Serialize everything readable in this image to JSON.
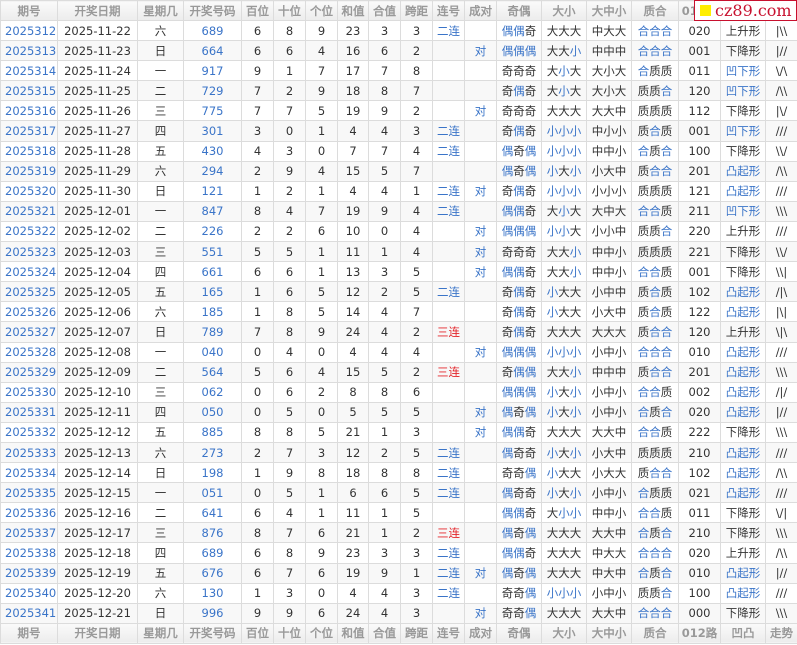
{
  "columns": [
    "期号",
    "开奖日期",
    "星期几",
    "开奖号码",
    "百位",
    "十位",
    "个位",
    "和值",
    "合值",
    "跨距",
    "连号",
    "成对",
    "奇偶",
    "大小",
    "大中小",
    "质合",
    "012路",
    "凹凸",
    "走势"
  ],
  "watermark": "cz89.com",
  "colors": {
    "blue": "#3a74c8",
    "red": "#e3262b"
  },
  "rows": [
    [
      "2025312",
      "2025-11-22",
      "六",
      "689",
      "6",
      "8",
      "9",
      "23",
      "3",
      "3",
      "二连",
      "",
      "偶偶奇",
      "大大大",
      "中大大",
      "合合合",
      "020",
      "上升形",
      "|\\\\"
    ],
    [
      "2025313",
      "2025-11-23",
      "日",
      "664",
      "6",
      "6",
      "4",
      "16",
      "6",
      "2",
      "",
      "对",
      "偶偶偶",
      "大大小",
      "中中中",
      "合合合",
      "001",
      "下降形",
      "|//"
    ],
    [
      "2025314",
      "2025-11-24",
      "一",
      "917",
      "9",
      "1",
      "7",
      "17",
      "7",
      "8",
      "",
      "",
      "奇奇奇",
      "大小大",
      "大小大",
      "合质质",
      "011",
      "凹下形",
      "\\/\\"
    ],
    [
      "2025315",
      "2025-11-25",
      "二",
      "729",
      "7",
      "2",
      "9",
      "18",
      "8",
      "7",
      "",
      "",
      "奇偶奇",
      "大小大",
      "大小大",
      "质质合",
      "120",
      "凹下形",
      "/\\\\"
    ],
    [
      "2025316",
      "2025-11-26",
      "三",
      "775",
      "7",
      "7",
      "5",
      "19",
      "9",
      "2",
      "",
      "对",
      "奇奇奇",
      "大大大",
      "大大中",
      "质质质",
      "112",
      "下降形",
      "|\\/"
    ],
    [
      "2025317",
      "2025-11-27",
      "四",
      "301",
      "3",
      "0",
      "1",
      "4",
      "4",
      "3",
      "二连",
      "",
      "奇偶奇",
      "小小小",
      "中小小",
      "质合质",
      "001",
      "凹下形",
      "///"
    ],
    [
      "2025318",
      "2025-11-28",
      "五",
      "430",
      "4",
      "3",
      "0",
      "7",
      "7",
      "4",
      "二连",
      "",
      "偶奇偶",
      "小小小",
      "中中小",
      "合质合",
      "100",
      "下降形",
      "\\\\/"
    ],
    [
      "2025319",
      "2025-11-29",
      "六",
      "294",
      "2",
      "9",
      "4",
      "15",
      "5",
      "7",
      "",
      "",
      "偶奇偶",
      "小大小",
      "小大中",
      "质合合",
      "201",
      "凸起形",
      "/\\\\"
    ],
    [
      "2025320",
      "2025-11-30",
      "日",
      "121",
      "1",
      "2",
      "1",
      "4",
      "4",
      "1",
      "二连",
      "对",
      "奇偶奇",
      "小小小",
      "小小小",
      "质质质",
      "121",
      "凸起形",
      "///"
    ],
    [
      "2025321",
      "2025-12-01",
      "一",
      "847",
      "8",
      "4",
      "7",
      "19",
      "9",
      "4",
      "二连",
      "",
      "偶偶奇",
      "大小大",
      "大中大",
      "合合质",
      "211",
      "凹下形",
      "\\\\\\"
    ],
    [
      "2025322",
      "2025-12-02",
      "二",
      "226",
      "2",
      "2",
      "6",
      "10",
      "0",
      "4",
      "",
      "对",
      "偶偶偶",
      "小小大",
      "小小中",
      "质质合",
      "220",
      "上升形",
      "///"
    ],
    [
      "2025323",
      "2025-12-03",
      "三",
      "551",
      "5",
      "5",
      "1",
      "11",
      "1",
      "4",
      "",
      "对",
      "奇奇奇",
      "大大小",
      "中中小",
      "质质质",
      "221",
      "下降形",
      "\\\\/"
    ],
    [
      "2025324",
      "2025-12-04",
      "四",
      "661",
      "6",
      "6",
      "1",
      "13",
      "3",
      "5",
      "",
      "对",
      "偶偶奇",
      "大大小",
      "中中小",
      "合合质",
      "001",
      "下降形",
      "\\\\|"
    ],
    [
      "2025325",
      "2025-12-05",
      "五",
      "165",
      "1",
      "6",
      "5",
      "12",
      "2",
      "5",
      "二连",
      "",
      "奇偶奇",
      "小大大",
      "小中中",
      "质合质",
      "102",
      "凸起形",
      "/|\\"
    ],
    [
      "2025326",
      "2025-12-06",
      "六",
      "185",
      "1",
      "8",
      "5",
      "14",
      "4",
      "7",
      "",
      "",
      "奇偶奇",
      "小大大",
      "小大中",
      "质合质",
      "122",
      "凸起形",
      "|\\|"
    ],
    [
      "2025327",
      "2025-12-07",
      "日",
      "789",
      "7",
      "8",
      "9",
      "24",
      "4",
      "2",
      "三连",
      "",
      "奇偶奇",
      "大大大",
      "大大大",
      "质合合",
      "120",
      "上升形",
      "\\|\\"
    ],
    [
      "2025328",
      "2025-12-08",
      "一",
      "040",
      "0",
      "4",
      "0",
      "4",
      "4",
      "4",
      "",
      "对",
      "偶偶偶",
      "小小小",
      "小中小",
      "合合合",
      "010",
      "凸起形",
      "///"
    ],
    [
      "2025329",
      "2025-12-09",
      "二",
      "564",
      "5",
      "6",
      "4",
      "15",
      "5",
      "2",
      "三连",
      "",
      "奇偶偶",
      "大大小",
      "中中中",
      "质合合",
      "201",
      "凸起形",
      "\\\\\\"
    ],
    [
      "2025330",
      "2025-12-10",
      "三",
      "062",
      "0",
      "6",
      "2",
      "8",
      "8",
      "6",
      "",
      "",
      "偶偶偶",
      "小大小",
      "小中小",
      "合合质",
      "002",
      "凸起形",
      "/|/"
    ],
    [
      "2025331",
      "2025-12-11",
      "四",
      "050",
      "0",
      "5",
      "0",
      "5",
      "5",
      "5",
      "",
      "对",
      "偶奇偶",
      "小大小",
      "小中小",
      "合质合",
      "020",
      "凸起形",
      "|//"
    ],
    [
      "2025332",
      "2025-12-12",
      "五",
      "885",
      "8",
      "8",
      "5",
      "21",
      "1",
      "3",
      "",
      "对",
      "偶偶奇",
      "大大大",
      "大大中",
      "合合质",
      "222",
      "下降形",
      "\\\\\\"
    ],
    [
      "2025333",
      "2025-12-13",
      "六",
      "273",
      "2",
      "7",
      "3",
      "12",
      "2",
      "5",
      "二连",
      "",
      "偶奇奇",
      "小大小",
      "小大中",
      "质质质",
      "210",
      "凸起形",
      "///"
    ],
    [
      "2025334",
      "2025-12-14",
      "日",
      "198",
      "1",
      "9",
      "8",
      "18",
      "8",
      "8",
      "二连",
      "",
      "奇奇偶",
      "小大大",
      "小大大",
      "质合合",
      "102",
      "凸起形",
      "/\\\\"
    ],
    [
      "2025335",
      "2025-12-15",
      "一",
      "051",
      "0",
      "5",
      "1",
      "6",
      "6",
      "5",
      "二连",
      "",
      "偶奇奇",
      "小大小",
      "小中小",
      "合质质",
      "021",
      "凸起形",
      "///"
    ],
    [
      "2025336",
      "2025-12-16",
      "二",
      "641",
      "6",
      "4",
      "1",
      "11",
      "1",
      "5",
      "",
      "",
      "偶偶奇",
      "大小小",
      "中中小",
      "合合质",
      "011",
      "下降形",
      "\\/|"
    ],
    [
      "2025337",
      "2025-12-17",
      "三",
      "876",
      "8",
      "7",
      "6",
      "21",
      "1",
      "2",
      "三连",
      "",
      "偶奇偶",
      "大大大",
      "大大中",
      "合质合",
      "210",
      "下降形",
      "\\\\\\"
    ],
    [
      "2025338",
      "2025-12-18",
      "四",
      "689",
      "6",
      "8",
      "9",
      "23",
      "3",
      "3",
      "二连",
      "",
      "偶偶奇",
      "大大大",
      "中大大",
      "合合合",
      "020",
      "上升形",
      "/\\\\"
    ],
    [
      "2025339",
      "2025-12-19",
      "五",
      "676",
      "6",
      "7",
      "6",
      "19",
      "9",
      "1",
      "二连",
      "对",
      "偶奇偶",
      "大大大",
      "中大中",
      "合质合",
      "010",
      "凸起形",
      "|//"
    ],
    [
      "2025340",
      "2025-12-20",
      "六",
      "130",
      "1",
      "3",
      "0",
      "4",
      "4",
      "3",
      "二连",
      "",
      "奇奇偶",
      "小小小",
      "小中小",
      "质质合",
      "100",
      "凸起形",
      "///"
    ],
    [
      "2025341",
      "2025-12-21",
      "日",
      "996",
      "9",
      "9",
      "6",
      "24",
      "4",
      "3",
      "",
      "对",
      "奇奇偶",
      "大大大",
      "大大中",
      "合合合",
      "000",
      "下降形",
      "\\\\\\"
    ]
  ]
}
